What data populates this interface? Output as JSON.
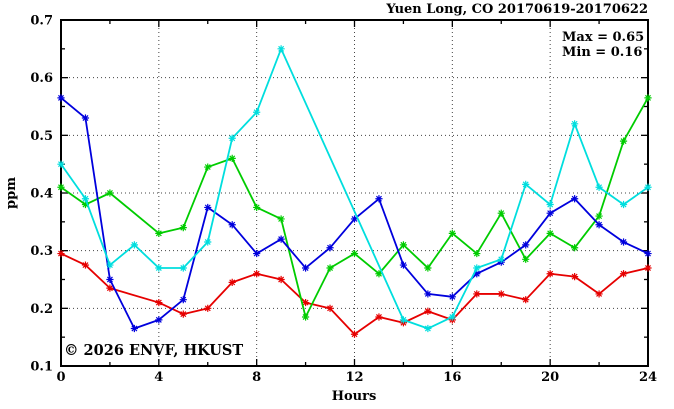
{
  "title": "Yuen Long, CO 20170619-20170622",
  "legend": {
    "max_label": "Max = 0.65",
    "min_label": "Min = 0.16"
  },
  "watermark": "© 2026 ENVF, HKUST",
  "chart_data": {
    "type": "line",
    "title": "Yuen Long, CO 20170619-20170622",
    "xlabel": "Hours",
    "ylabel": "ppm",
    "xlim": [
      0,
      24
    ],
    "ylim": [
      0.1,
      0.7
    ],
    "xticks": [
      0,
      4,
      8,
      12,
      16,
      20,
      24
    ],
    "xtick_labels": [
      "0",
      "4",
      "8",
      "12",
      "16",
      "20",
      "24"
    ],
    "x_minor_step": 2,
    "yticks": [
      0.1,
      0.2,
      0.3,
      0.4,
      0.5,
      0.6,
      0.7
    ],
    "ytick_labels": [
      "0.1",
      "0.2",
      "0.3",
      "0.4",
      "0.5",
      "0.6",
      "0.7"
    ],
    "y_minor_step": 0.05,
    "grid": true,
    "legend_position": "top-right-inside",
    "stat_max": 0.65,
    "stat_min": 0.16,
    "x": [
      0,
      1,
      2,
      3,
      4,
      5,
      6,
      7,
      8,
      9,
      10,
      11,
      12,
      13,
      14,
      15,
      16,
      17,
      18,
      19,
      20,
      21,
      22,
      23,
      24
    ],
    "series": [
      {
        "name": "red",
        "color": "#e60000",
        "values": [
          0.295,
          0.275,
          0.235,
          null,
          0.21,
          0.19,
          0.2,
          0.245,
          0.26,
          0.25,
          0.21,
          0.2,
          0.155,
          0.185,
          0.175,
          0.195,
          0.18,
          0.225,
          0.225,
          0.215,
          0.26,
          0.255,
          0.225,
          0.26,
          0.27
        ]
      },
      {
        "name": "green",
        "color": "#00cc00",
        "values": [
          0.41,
          0.38,
          0.4,
          null,
          0.33,
          0.34,
          0.445,
          0.46,
          0.375,
          0.355,
          0.185,
          0.27,
          0.295,
          0.26,
          0.31,
          0.27,
          0.33,
          0.295,
          0.365,
          0.285,
          0.33,
          0.305,
          0.36,
          0.49,
          0.565
        ]
      },
      {
        "name": "blue",
        "color": "#0000dd",
        "values": [
          0.565,
          0.53,
          0.25,
          0.165,
          0.18,
          0.215,
          0.375,
          0.345,
          0.295,
          0.32,
          0.27,
          0.305,
          0.355,
          0.39,
          0.275,
          0.225,
          0.22,
          0.26,
          0.28,
          0.31,
          0.365,
          0.39,
          0.345,
          0.315,
          0.295
        ]
      },
      {
        "name": "cyan",
        "color": "#00dede",
        "values": [
          0.45,
          0.39,
          0.275,
          0.31,
          0.27,
          0.27,
          0.315,
          0.495,
          0.54,
          0.65,
          null,
          null,
          null,
          null,
          0.18,
          0.165,
          0.185,
          0.27,
          0.285,
          0.415,
          0.38,
          0.52,
          0.41,
          0.38,
          0.41
        ]
      }
    ]
  }
}
